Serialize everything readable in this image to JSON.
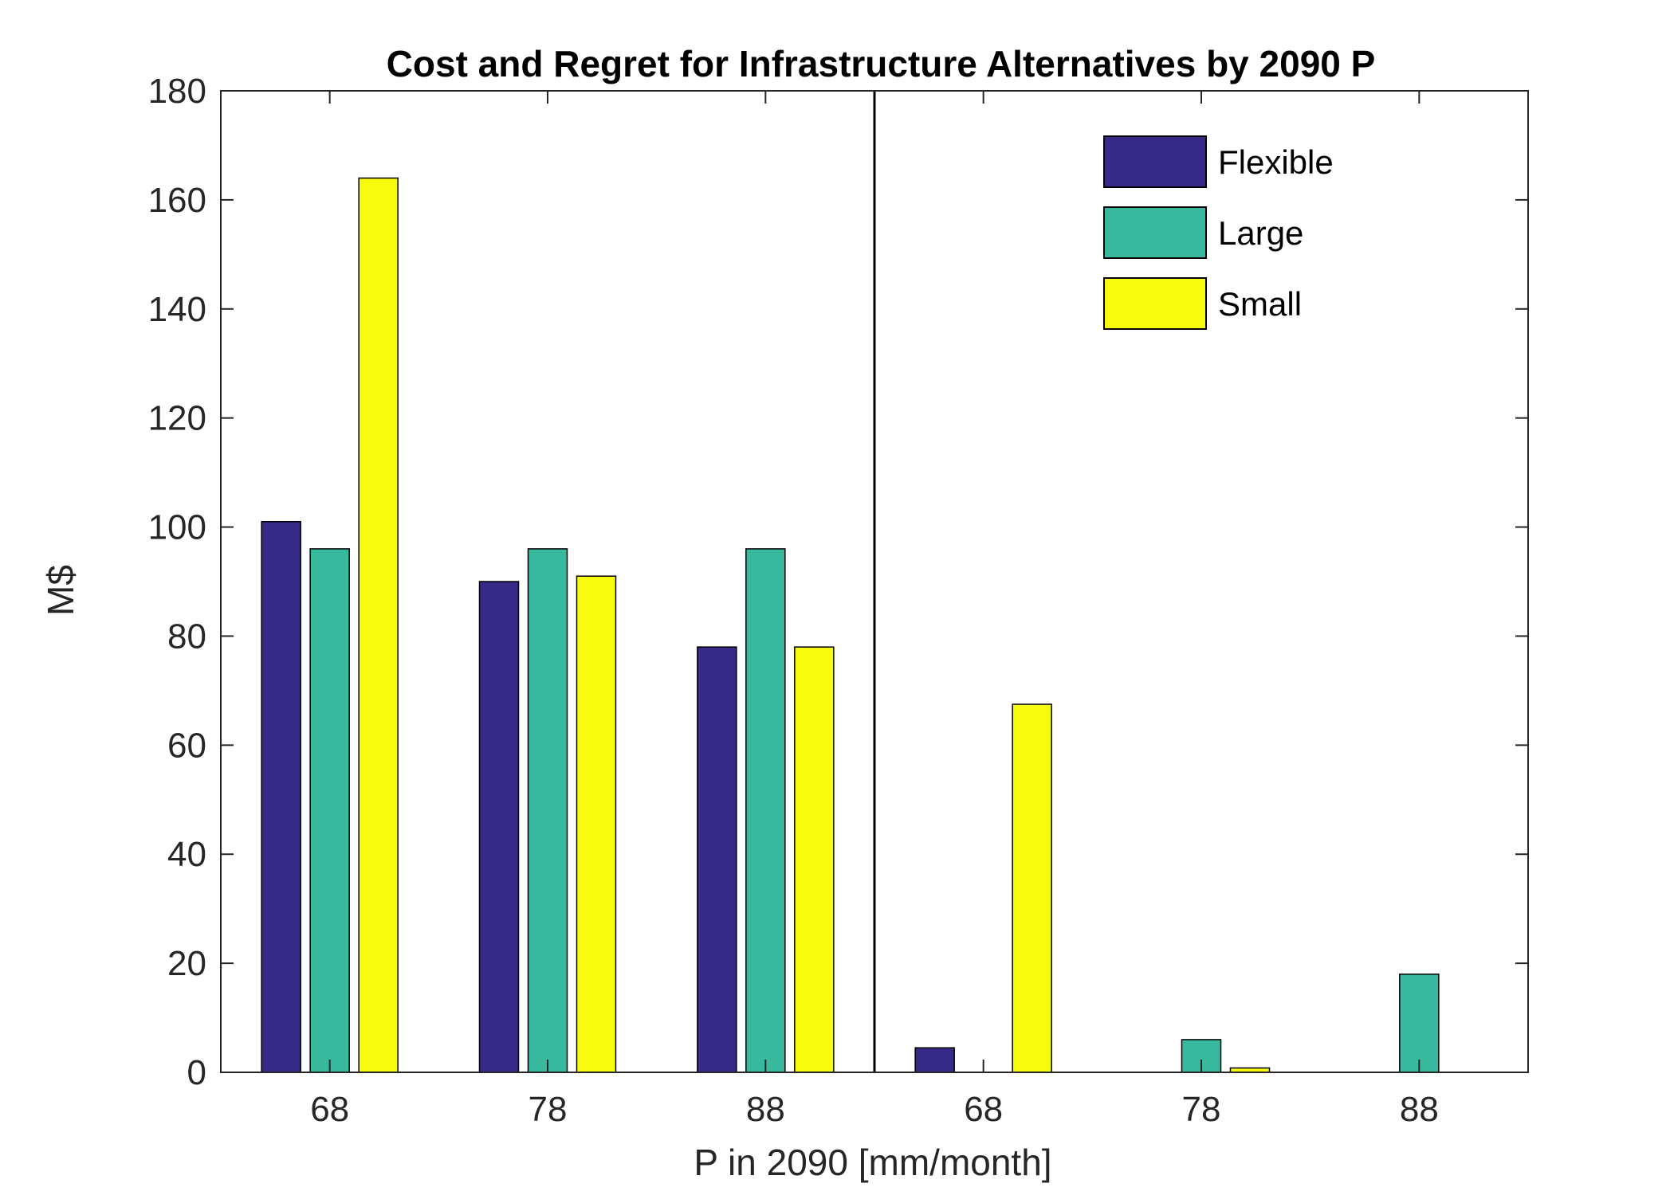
{
  "chart_data": {
    "type": "bar",
    "title": "Cost and Regret for Infrastructure Alternatives by 2090 P",
    "xlabel": "P in 2090 [mm/month]",
    "ylabel": "M$",
    "ylim": [
      0,
      180
    ],
    "yticks": [
      "0",
      "20",
      "40",
      "60",
      "80",
      "100",
      "120",
      "140",
      "160",
      "180"
    ],
    "categories": [
      "68",
      "78",
      "88",
      "68",
      "78",
      "88"
    ],
    "series": [
      {
        "name": "Flexible",
        "color": "#352a87",
        "values": [
          101,
          90,
          78,
          4.5,
          0,
          0
        ]
      },
      {
        "name": "Large",
        "color": "#38b99e",
        "values": [
          96,
          96,
          96,
          0,
          6,
          18
        ]
      },
      {
        "name": "Small",
        "color": "#f9fb0e",
        "values": [
          164,
          91,
          78,
          67.5,
          0.8,
          0
        ]
      }
    ],
    "divider_after_category": 3,
    "legend_position": "top-right",
    "grid": false
  }
}
